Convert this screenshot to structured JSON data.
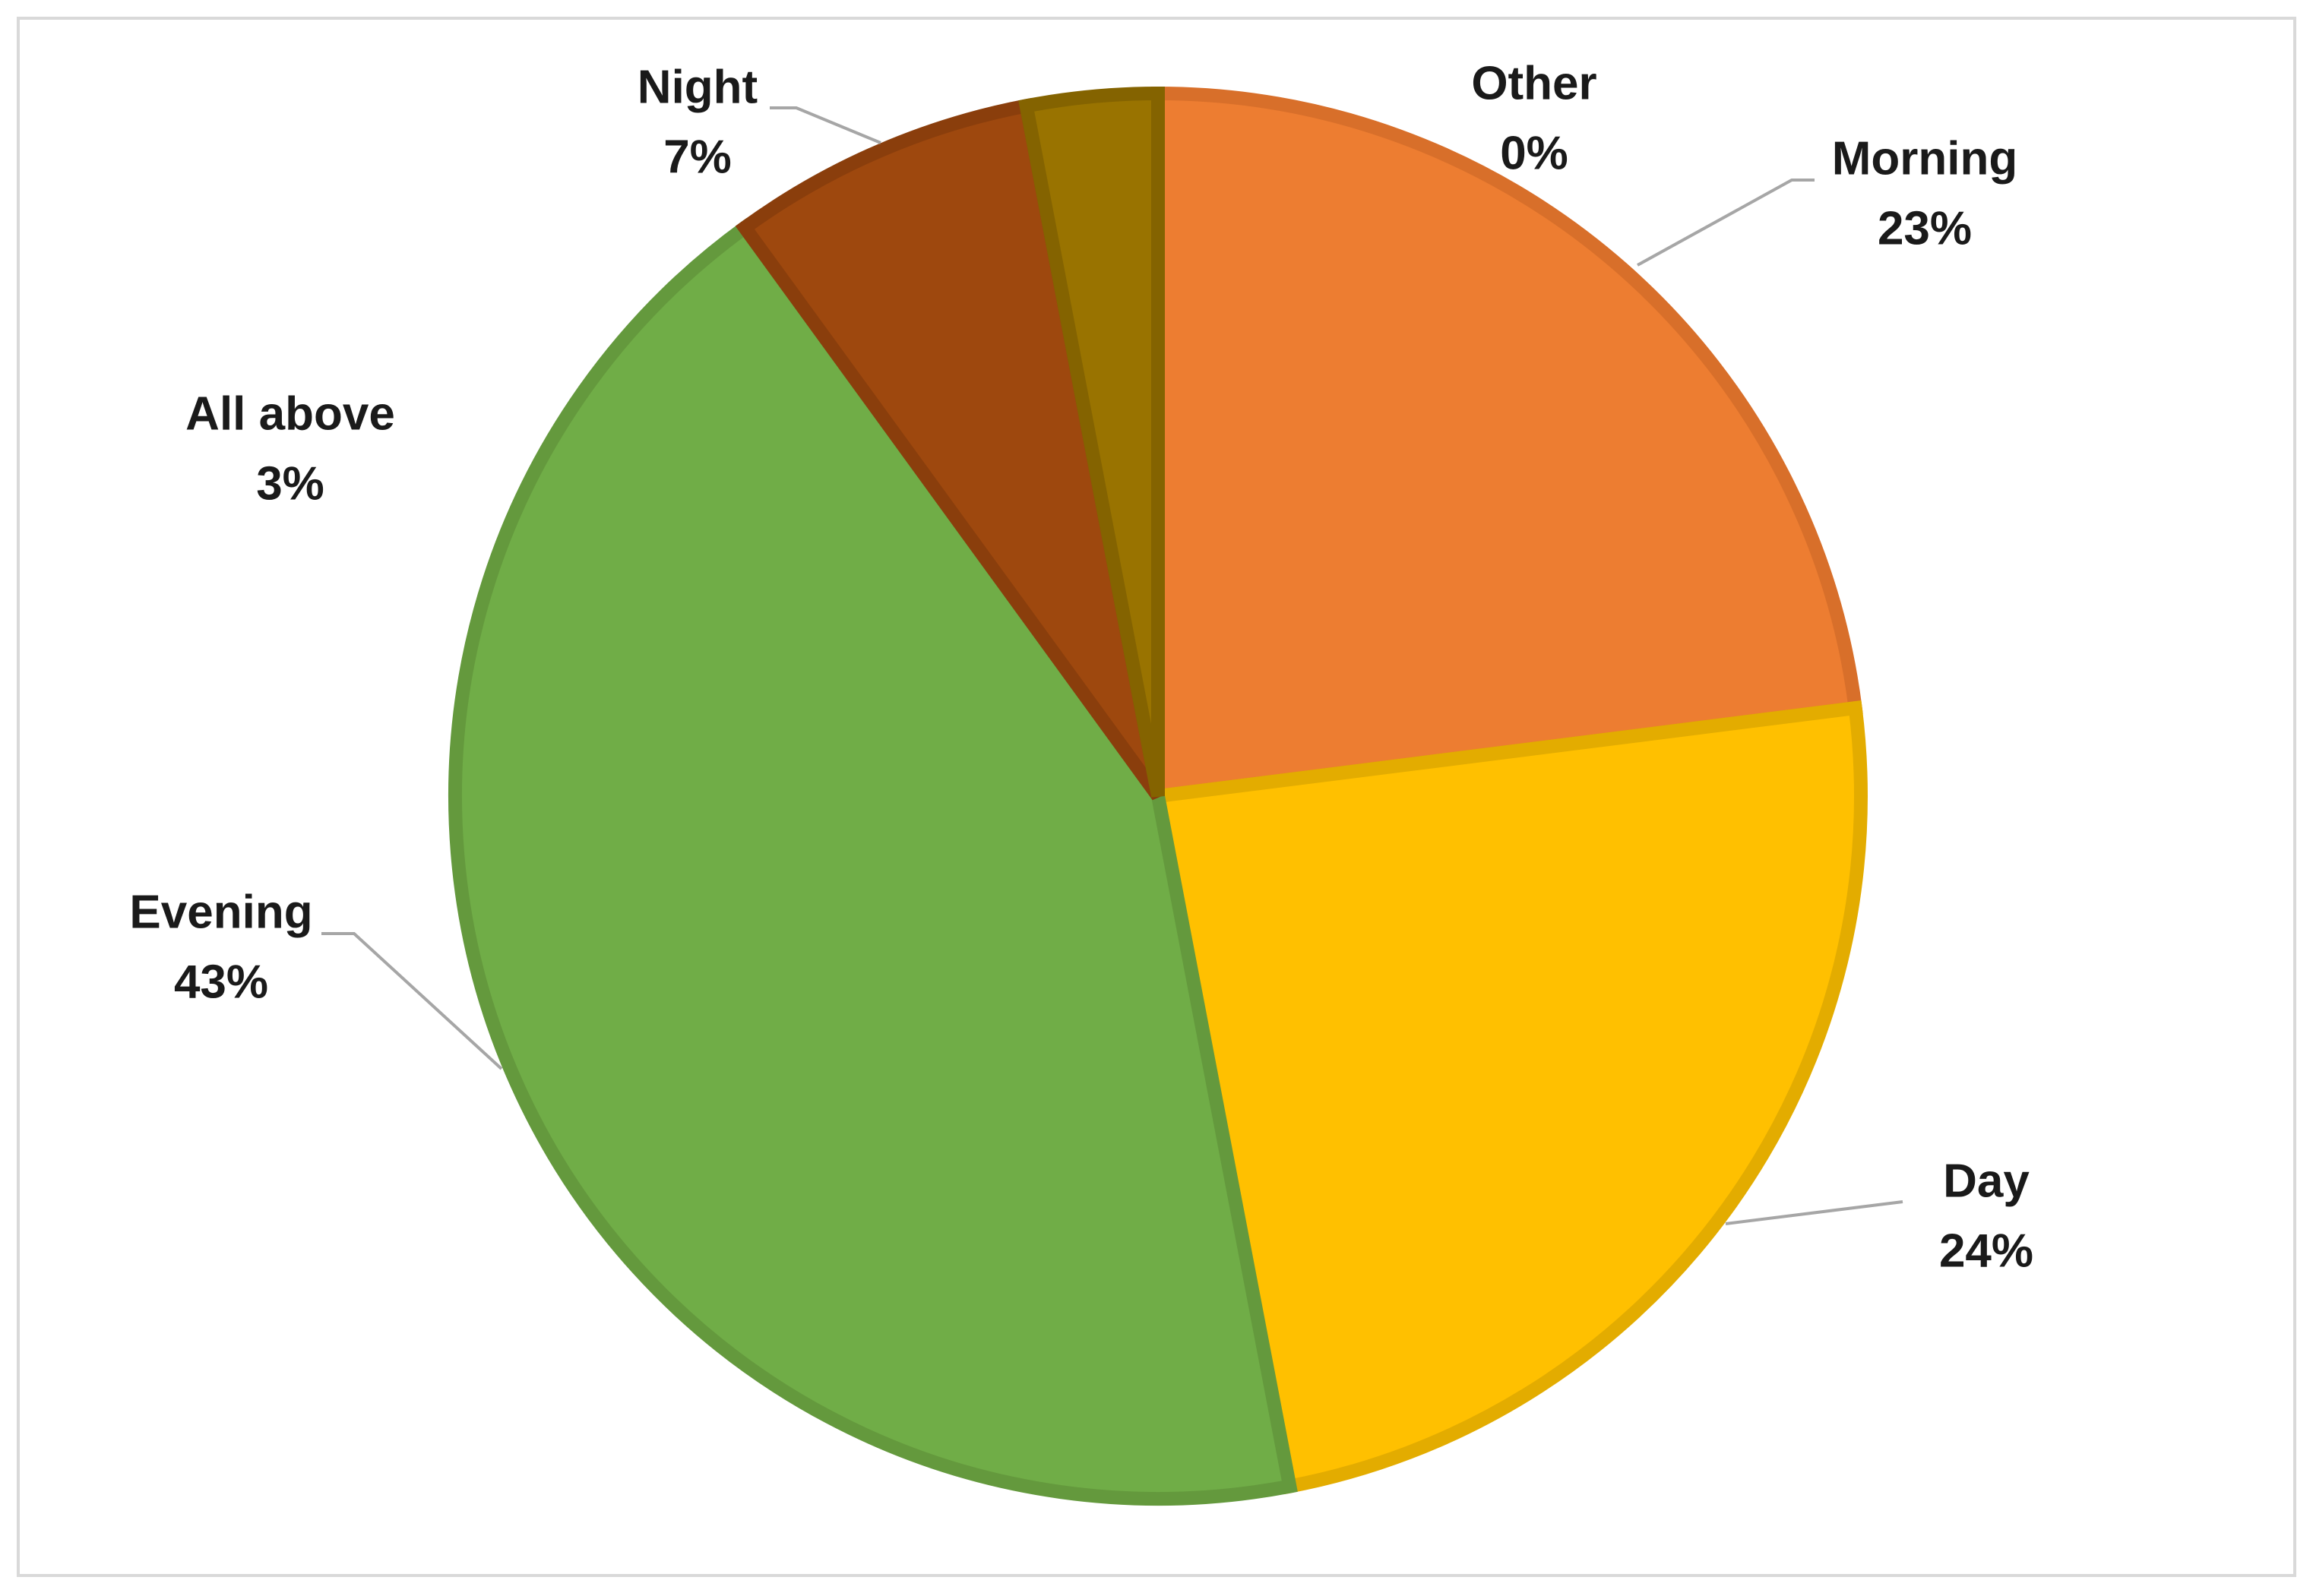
{
  "chart_data": {
    "type": "pie",
    "categories": [
      "Morning",
      "Day",
      "Evening",
      "Night",
      "All above",
      "Other"
    ],
    "values": [
      23,
      24,
      43,
      7,
      3,
      0
    ],
    "value_labels": [
      "23%",
      "24%",
      "43%",
      "7%",
      "3%",
      "0%"
    ],
    "colors": [
      "#ED7D31",
      "#FFC000",
      "#70AD47",
      "#9E480E",
      "#997300"
    ],
    "border_colors": [
      "#D86F2A",
      "#E3AC00",
      "#64993D",
      "#8A3E0C",
      "#846300"
    ]
  }
}
